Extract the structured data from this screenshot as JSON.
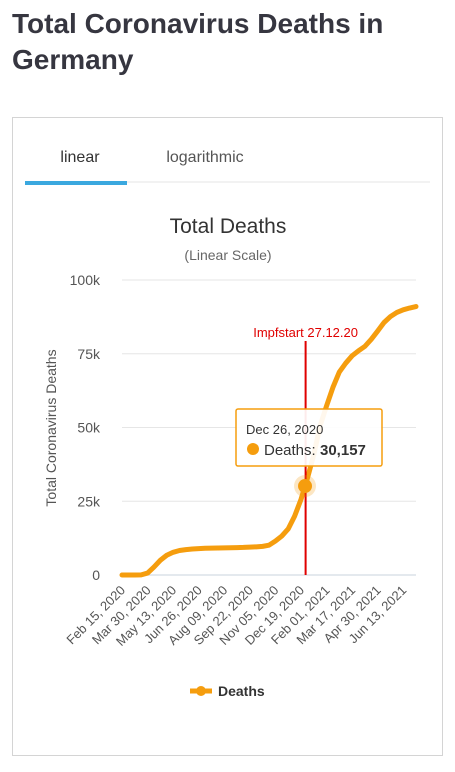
{
  "page_title": "Total Coronavirus Deaths in Germany",
  "tabs": [
    "linear",
    "logarithmic"
  ],
  "chart_data": {
    "type": "line",
    "title": "Total Deaths",
    "subtitle": "(Linear Scale)",
    "y_label": "Total Coronavirus Deaths",
    "categories": [
      "Feb 15, 2020",
      null,
      null,
      null,
      "Mar 30, 2020",
      null,
      null,
      null,
      "May 13, 2020",
      null,
      null,
      null,
      "Jun 26, 2020",
      null,
      null,
      null,
      "Aug 09, 2020",
      null,
      null,
      null,
      "Sep 22, 2020",
      null,
      null,
      null,
      "Nov 05, 2020",
      null,
      null,
      null,
      "Dec 19, 2020",
      null,
      null,
      null,
      "Feb 01, 2021",
      null,
      null,
      null,
      "Mar 17, 2021",
      null,
      null,
      null,
      "Apr 30, 2021",
      null,
      null,
      null,
      "Jun 13, 2021",
      null,
      null
    ],
    "series": [
      {
        "name": "Deaths",
        "color": "#f59d0e",
        "values": [
          0,
          0,
          0,
          50,
          650,
          2700,
          5000,
          6700,
          7700,
          8300,
          8600,
          8800,
          8950,
          9050,
          9100,
          9150,
          9200,
          9250,
          9300,
          9350,
          9450,
          9550,
          9700,
          10100,
          11500,
          13200,
          15600,
          19900,
          25600,
          32700,
          40700,
          50600,
          57300,
          63600,
          68800,
          71800,
          74300,
          76000,
          77500,
          79900,
          82700,
          85600,
          87600,
          89000,
          89900,
          90500,
          91000
        ]
      }
    ],
    "ylim": [
      0,
      100000
    ],
    "yticks": [
      0,
      {
        "value": 25000,
        "label": "25k"
      },
      {
        "value": 50000,
        "label": "50k"
      },
      {
        "value": 75000,
        "label": "75k"
      },
      {
        "value": 100000,
        "label": "100k"
      }
    ],
    "grid": true,
    "legend": "bottom",
    "annotation": {
      "text": "Impfstart 27.12.20",
      "color": "#e00000"
    },
    "tooltip": {
      "date": "Dec 26, 2020",
      "series_label": "Deaths:",
      "value": 30157,
      "value_label": "30,157"
    }
  }
}
